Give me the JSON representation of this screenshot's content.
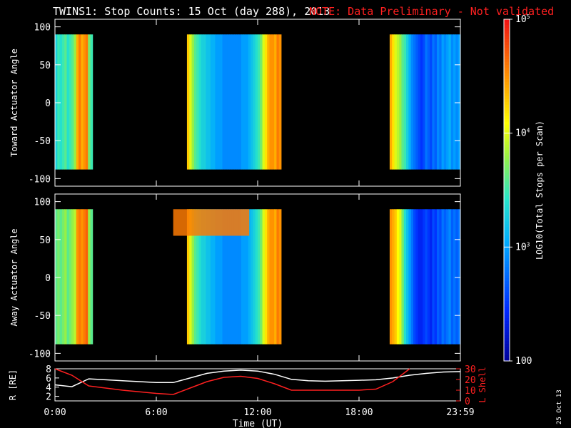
{
  "header": {
    "title": "TWINS1: Stop Counts: 15 Oct (day 288), 2013",
    "note": "NOTE: Data Preliminary - Not validated"
  },
  "stamp": "25 Oct 13",
  "chart_data": [
    {
      "type": "heatmap",
      "ylabel": "Toward Actuator Angle",
      "ylim": [
        -110,
        110
      ],
      "yticks": [
        100,
        50,
        0,
        -50,
        -100
      ],
      "angle_range": [
        -88,
        90
      ],
      "xlim_hours": [
        0,
        24
      ],
      "data_segments": [
        {
          "start": "00:00",
          "end": "02:00",
          "start_h": 0.0,
          "end_h": 2.0
        },
        {
          "start": "07:00",
          "end": "14:20",
          "start_h": 7.0,
          "end_h": 14.33
        },
        {
          "start": "19:00",
          "end": "23:59",
          "start_h": 19.0,
          "end_h": 24.0
        }
      ],
      "color_bar": {
        "label": "LOG10(Total Stops per Scan)",
        "log_min": 2,
        "log_max": 5,
        "tick_labels": [
          "100",
          "10^3",
          "10^4",
          "10^5"
        ]
      },
      "levels_log10": [
        3.3,
        3.5,
        3.4,
        3.5,
        3.6,
        3.4,
        3.5,
        3.6,
        3.8,
        4.4,
        4.6,
        4.4,
        4.5,
        4.6,
        3.7,
        3.5,
        0,
        0,
        0,
        0,
        0,
        0,
        0,
        0,
        0,
        0,
        0,
        0,
        0,
        0,
        0,
        0,
        0,
        0,
        0,
        0,
        0,
        0,
        0,
        0,
        0,
        0,
        0,
        0,
        0,
        0,
        0,
        0,
        0,
        0,
        0,
        0,
        0,
        0,
        0,
        0,
        4.3,
        4.0,
        3.8,
        3.6,
        3.5,
        3.4,
        3.3,
        3.3,
        3.2,
        3.2,
        3.1,
        3.1,
        3.0,
        3.0,
        3.0,
        2.9,
        2.9,
        2.9,
        2.9,
        2.9,
        2.9,
        2.9,
        2.9,
        3.0,
        3.0,
        3.0,
        3.1,
        3.2,
        3.3,
        3.4,
        3.5,
        3.7,
        4.0,
        4.2,
        4.4,
        4.5,
        4.5,
        4.4,
        4.6,
        4.5,
        0,
        0,
        0,
        0,
        0,
        0,
        0,
        0,
        0,
        0,
        0,
        0,
        0,
        0,
        0,
        0,
        0,
        0,
        0,
        0,
        0,
        0,
        0,
        0,
        0,
        0,
        0,
        0,
        0,
        0,
        0,
        0,
        0,
        0,
        0,
        0,
        0,
        0,
        0,
        0,
        0,
        0,
        0,
        0,
        0,
        0,
        4.4,
        4.2,
        4.0,
        3.9,
        3.8,
        3.6,
        3.5,
        3.3,
        3.1,
        2.9,
        2.8,
        2.7,
        2.6,
        2.5,
        2.6,
        2.8,
        2.7,
        2.6,
        2.8,
        2.7,
        2.9,
        2.8,
        3.0,
        2.9,
        3.0,
        3.1,
        2.9,
        3.0,
        2.9,
        3.0
      ]
    },
    {
      "type": "heatmap",
      "ylabel": "Away Actuator Angle",
      "ylim": [
        -110,
        110
      ],
      "yticks": [
        100,
        50,
        0,
        -50,
        -100
      ],
      "angle_range": [
        -88,
        90
      ],
      "xlim_hours": [
        0,
        24
      ],
      "data_segments": [
        {
          "start": "00:00",
          "end": "02:00",
          "start_h": 0.0,
          "end_h": 2.0
        },
        {
          "start": "07:00",
          "end": "14:20",
          "start_h": 7.0,
          "end_h": 14.33
        },
        {
          "start": "19:00",
          "end": "23:59",
          "start_h": 19.0,
          "end_h": 24.0
        }
      ],
      "levels_log10": [
        3.6,
        3.7,
        3.6,
        3.7,
        3.8,
        3.6,
        3.7,
        3.8,
        3.9,
        4.5,
        4.6,
        4.5,
        4.6,
        4.7,
        3.8,
        3.6,
        0,
        0,
        0,
        0,
        0,
        0,
        0,
        0,
        0,
        0,
        0,
        0,
        0,
        0,
        0,
        0,
        0,
        0,
        0,
        0,
        0,
        0,
        0,
        0,
        0,
        0,
        0,
        0,
        0,
        0,
        0,
        0,
        0,
        0,
        0,
        0,
        0,
        0,
        0,
        0,
        4.3,
        4.0,
        3.8,
        3.6,
        3.5,
        3.4,
        3.3,
        3.3,
        3.2,
        3.2,
        3.1,
        3.1,
        3.0,
        3.0,
        3.0,
        2.9,
        2.9,
        2.9,
        2.9,
        2.9,
        2.9,
        2.9,
        2.9,
        3.0,
        3.0,
        3.0,
        3.1,
        3.2,
        3.3,
        3.4,
        3.5,
        3.7,
        4.0,
        4.2,
        4.4,
        4.5,
        4.5,
        4.4,
        4.6,
        4.5,
        0,
        0,
        0,
        0,
        0,
        0,
        0,
        0,
        0,
        0,
        0,
        0,
        0,
        0,
        0,
        0,
        0,
        0,
        0,
        0,
        0,
        0,
        0,
        0,
        0,
        0,
        0,
        0,
        0,
        0,
        0,
        0,
        0,
        0,
        0,
        0,
        0,
        0,
        0,
        0,
        0,
        0,
        0,
        0,
        0,
        0,
        4.5,
        4.4,
        4.3,
        4.1,
        4.0,
        3.7,
        3.4,
        3.2,
        3.0,
        2.8,
        2.6,
        2.5,
        2.4,
        2.4,
        2.5,
        2.6,
        2.5,
        2.4,
        2.6,
        2.5,
        2.7,
        2.6,
        2.8,
        2.7,
        2.8,
        2.9,
        2.7,
        2.8,
        2.7,
        2.8
      ],
      "high_band": {
        "angle_range": [
          55,
          90
        ],
        "start_h": 7.0,
        "end_h": 11.5,
        "level_log10": 4.6
      }
    },
    {
      "type": "line",
      "xlabel": "Time (UT)",
      "x_ticks": [
        "0:00",
        "6:00",
        "12:00",
        "18:00",
        "23:59"
      ],
      "x_ticks_h": [
        0,
        6,
        12,
        18,
        24
      ],
      "ylabel_left": "R [RE]",
      "ylim_left": [
        1,
        8
      ],
      "yticks_left": [
        2,
        4,
        6,
        8
      ],
      "ylabel_right": "L Shell",
      "ylim_right": [
        0,
        30
      ],
      "yticks_right": [
        0,
        10,
        20,
        30
      ],
      "series": [
        {
          "axis": "left",
          "color": "#ffffff",
          "x": [
            0,
            1,
            2,
            3,
            4,
            5,
            6,
            7,
            8,
            9,
            10,
            11,
            12,
            13,
            14,
            15,
            16,
            17,
            18,
            19,
            20,
            21,
            22,
            23,
            24
          ],
          "y": [
            4.5,
            4.1,
            5.8,
            5.6,
            5.4,
            5.2,
            5.0,
            5.0,
            6.0,
            7.0,
            7.5,
            7.7,
            7.5,
            6.8,
            5.7,
            5.4,
            5.3,
            5.4,
            5.5,
            5.6,
            6.0,
            6.6,
            7.0,
            7.3,
            7.4
          ]
        },
        {
          "axis": "right",
          "color": "#ff2020",
          "x": [
            0,
            1,
            2,
            3,
            4,
            5,
            6,
            7,
            8,
            9,
            10,
            11,
            12,
            13,
            14,
            15,
            16,
            17,
            18,
            19,
            20,
            21
          ],
          "y": [
            31,
            24,
            14,
            12,
            10,
            8.5,
            7,
            6,
            12,
            18,
            22,
            23,
            21,
            16,
            10,
            10,
            10,
            10,
            10,
            11,
            18,
            30
          ]
        }
      ]
    }
  ]
}
